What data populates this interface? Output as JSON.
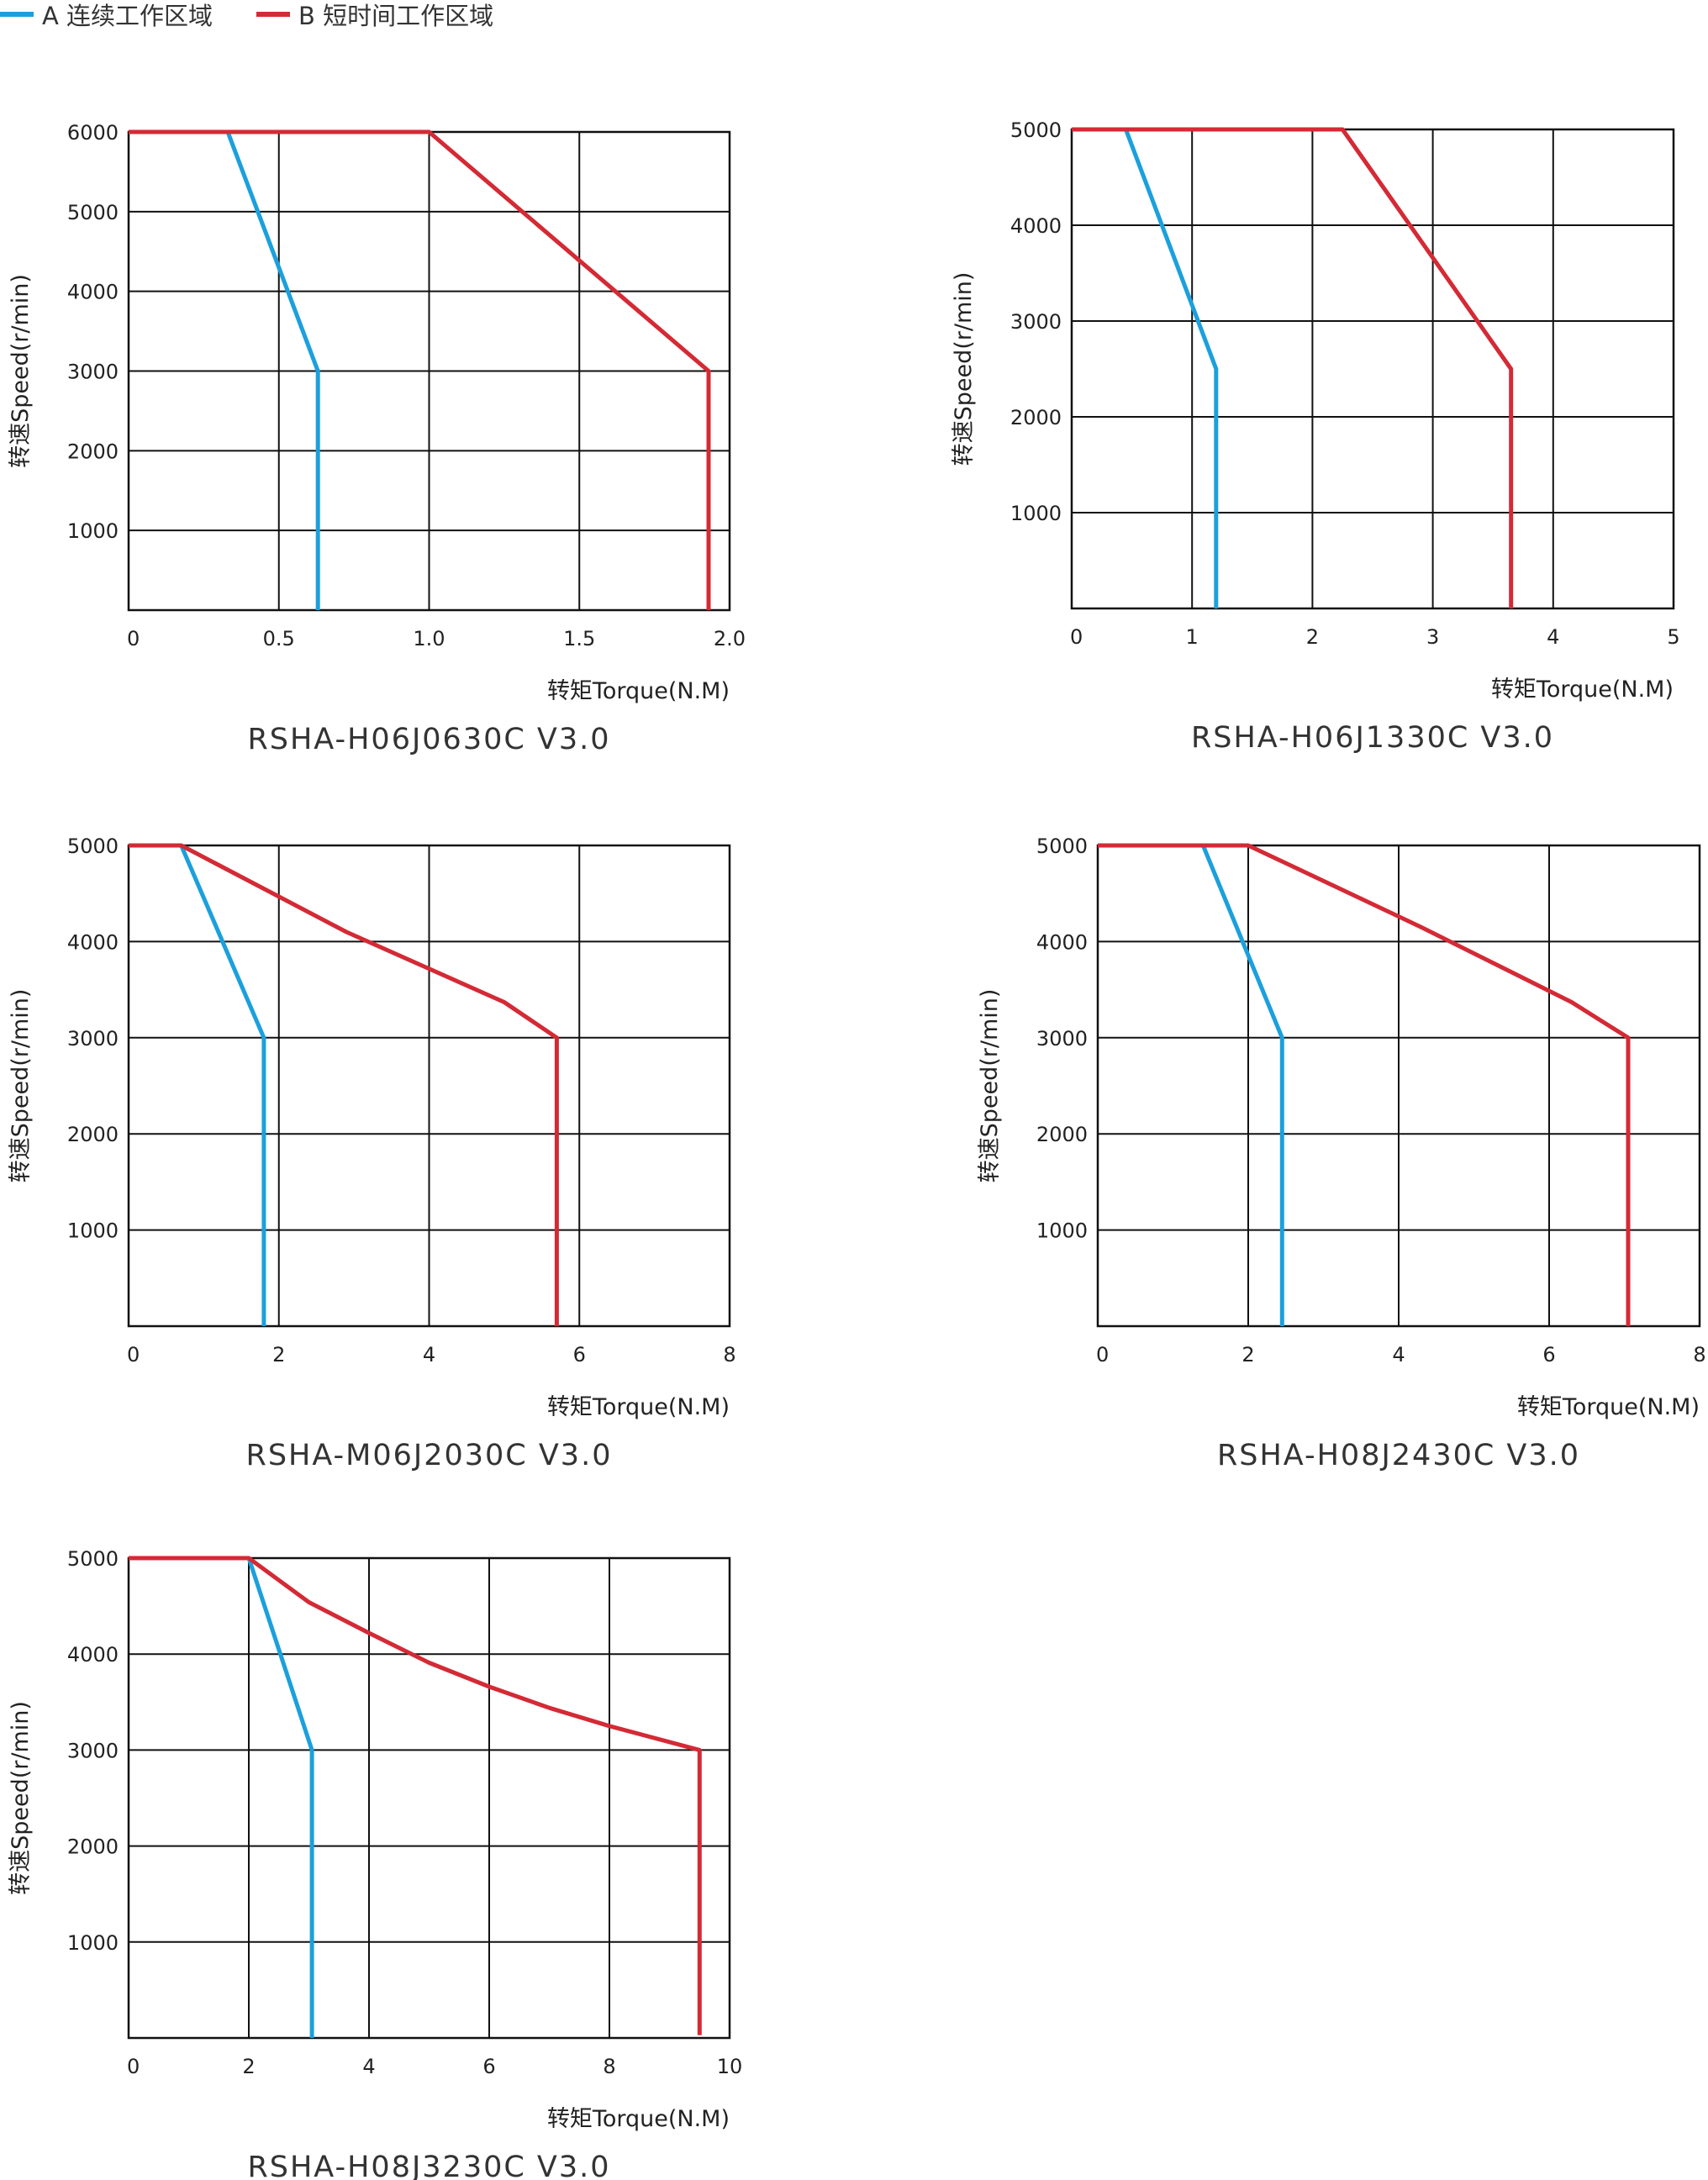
{
  "legend": {
    "a_label": "A 连续工作区域",
    "b_label": "B 短时间工作区域",
    "a_color": "#1ba0dc",
    "b_color": "#d42a35"
  },
  "chart_data": [
    {
      "type": "line",
      "title": "RSHA-H06J0630C V3.0",
      "xlabel": "转矩Torque(N.M)",
      "ylabel": "转速Speed(r/min)",
      "xlim": [
        0,
        2.0
      ],
      "ylim": [
        0,
        6000
      ],
      "x_ticks": [
        "0",
        "0.5",
        "1.0",
        "1.5",
        "2.0"
      ],
      "y_ticks": [
        "1000",
        "2000",
        "3000",
        "4000",
        "5000",
        "6000"
      ],
      "grid": true,
      "series": [
        {
          "name": "A",
          "points": [
            [
              0.33,
              6000
            ],
            [
              0.63,
              3000
            ],
            [
              0.63,
              0
            ]
          ]
        },
        {
          "name": "B",
          "points": [
            [
              0,
              6000
            ],
            [
              1.0,
              6000
            ],
            [
              1.93,
              3000
            ],
            [
              1.93,
              0
            ]
          ]
        }
      ]
    },
    {
      "type": "line",
      "title": "RSHA-H06J1330C V3.0",
      "xlabel": "转矩Torque(N.M)",
      "ylabel": "转速Speed(r/min)",
      "xlim": [
        0,
        5
      ],
      "ylim": [
        0,
        5000
      ],
      "x_ticks": [
        "0",
        "1",
        "2",
        "3",
        "4",
        "5"
      ],
      "y_ticks": [
        "1000",
        "2000",
        "3000",
        "4000",
        "5000"
      ],
      "grid": true,
      "series": [
        {
          "name": "A",
          "points": [
            [
              0.45,
              5000
            ],
            [
              1.2,
              2500
            ],
            [
              1.2,
              0
            ]
          ]
        },
        {
          "name": "B",
          "points": [
            [
              0,
              5000
            ],
            [
              2.25,
              5000
            ],
            [
              3.65,
              2500
            ],
            [
              3.65,
              0
            ]
          ]
        }
      ]
    },
    {
      "type": "line",
      "title": "RSHA-M06J2030C V3.0",
      "xlabel": "转矩Torque(N.M)",
      "ylabel": "转速Speed(r/min)",
      "xlim": [
        0,
        8
      ],
      "ylim": [
        0,
        5000
      ],
      "x_ticks": [
        "0",
        "2",
        "4",
        "6",
        "8"
      ],
      "y_ticks": [
        "1000",
        "2000",
        "3000",
        "4000",
        "5000"
      ],
      "grid": true,
      "series": [
        {
          "name": "A",
          "points": [
            [
              0.7,
              5000
            ],
            [
              1.8,
              3000
            ],
            [
              1.8,
              0
            ]
          ]
        },
        {
          "name": "B",
          "points": [
            [
              0,
              5000
            ],
            [
              0.7,
              5000
            ],
            [
              2.9,
              4100
            ],
            [
              5.0,
              3370
            ],
            [
              5.7,
              3000
            ],
            [
              5.7,
              0
            ]
          ]
        }
      ]
    },
    {
      "type": "line",
      "title": "RSHA-H08J2430C V3.0",
      "xlabel": "转矩Torque(N.M)",
      "ylabel": "转速Speed(r/min)",
      "xlim": [
        0,
        8
      ],
      "ylim": [
        0,
        5000
      ],
      "x_ticks": [
        "0",
        "2",
        "4",
        "6",
        "8"
      ],
      "y_ticks": [
        "1000",
        "2000",
        "3000",
        "4000",
        "5000"
      ],
      "grid": true,
      "series": [
        {
          "name": "A",
          "points": [
            [
              1.4,
              5000
            ],
            [
              2.45,
              3000
            ],
            [
              2.45,
              0
            ]
          ]
        },
        {
          "name": "B",
          "points": [
            [
              0,
              5000
            ],
            [
              2.0,
              5000
            ],
            [
              4.3,
              4150
            ],
            [
              6.3,
              3370
            ],
            [
              7.05,
              3000
            ],
            [
              7.05,
              0
            ]
          ]
        }
      ]
    },
    {
      "type": "line",
      "title": "RSHA-H08J3230C V3.0",
      "xlabel": "转矩Torque(N.M)",
      "ylabel": "转速Speed(r/min)",
      "xlim": [
        0,
        10
      ],
      "ylim": [
        0,
        5000
      ],
      "x_ticks": [
        "0",
        "2",
        "4",
        "6",
        "8",
        "10"
      ],
      "y_ticks": [
        "1000",
        "2000",
        "3000",
        "4000",
        "5000"
      ],
      "grid": true,
      "series": [
        {
          "name": "A",
          "points": [
            [
              2.0,
              5000
            ],
            [
              3.05,
              3000
            ],
            [
              3.05,
              0
            ]
          ]
        },
        {
          "name": "B",
          "points": [
            [
              0,
              5000
            ],
            [
              2.0,
              5000
            ],
            [
              3.0,
              4540
            ],
            [
              4.0,
              4220
            ],
            [
              5.0,
              3910
            ],
            [
              6.0,
              3660
            ],
            [
              7.0,
              3440
            ],
            [
              8.0,
              3250
            ],
            [
              9.5,
              3000
            ],
            [
              9.5,
              30
            ]
          ]
        }
      ]
    }
  ]
}
